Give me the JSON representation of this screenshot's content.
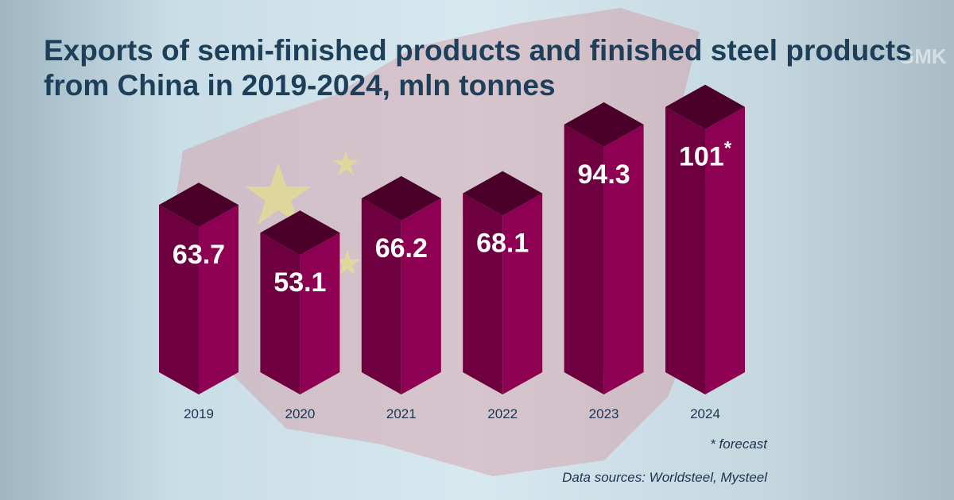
{
  "title": "Exports of semi-finished products and finished steel products from China in 2019-2024, mln tonnes",
  "footnote": "* forecast",
  "sources": "Data sources: Worldsteel, Mysteel",
  "watermark": "GMK CENTER",
  "colors": {
    "bar_left": "#6e0040",
    "bar_right": "#8e0052",
    "bar_top": "#4a0028",
    "title": "#1d3f5a"
  },
  "chart_data": {
    "type": "bar",
    "title": "Exports of semi-finished products and finished steel products from China in 2019-2024, mln tonnes",
    "categories": [
      "2019",
      "2020",
      "2021",
      "2022",
      "2023",
      "2024"
    ],
    "values": [
      63.7,
      53.1,
      66.2,
      68.1,
      94.3,
      101
    ],
    "labels": [
      "63.7",
      "53.1",
      "66.2",
      "68.1",
      "94.3",
      "101"
    ],
    "forecast": [
      false,
      false,
      false,
      false,
      false,
      true
    ],
    "forecast_marker": "*",
    "unit": "mln tonnes"
  }
}
